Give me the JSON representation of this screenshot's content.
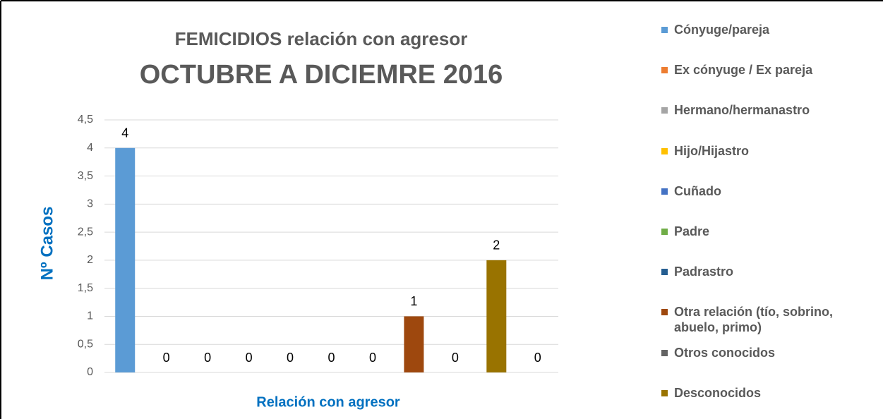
{
  "chart_data": {
    "type": "bar",
    "title": "FEMICIDIOS relación con agresor",
    "subtitle": "OCTUBRE A DICIEMRE 2016",
    "y_label": "Nº Casos",
    "x_label": "Relación con agresor",
    "categories": [
      "Cónyuge/pareja",
      "Ex cónyuge / Ex pareja",
      "Hermano/hermanastro",
      "Hijo/Hijastro",
      "Cuñado",
      "Padre",
      "Padrastro",
      "Otra relación (tío, sobrino, abuelo, primo)",
      "Otros conocidos",
      "Desconocidos",
      null
    ],
    "values": [
      4,
      0,
      0,
      0,
      0,
      0,
      0,
      1,
      0,
      2,
      0
    ],
    "colors": [
      "#5b9bd5",
      "#ed7d31",
      "#a5a5a5",
      "#ffc000",
      "#4472c4",
      "#70ad47",
      "#255e91",
      "#9e480e",
      "#636363",
      "#997300",
      "#264478"
    ],
    "ylim": [
      0,
      4.5
    ],
    "yticks": [
      0,
      {
        "value": 0.5,
        "label": "0,5"
      },
      1,
      {
        "value": 1.5,
        "label": "1,5"
      },
      2,
      {
        "value": 2.5,
        "label": "2,5"
      },
      3,
      {
        "value": 3.5,
        "label": "3,5"
      },
      4,
      {
        "value": 4.5,
        "label": "4,5"
      }
    ],
    "grid": true,
    "legend": "right"
  }
}
